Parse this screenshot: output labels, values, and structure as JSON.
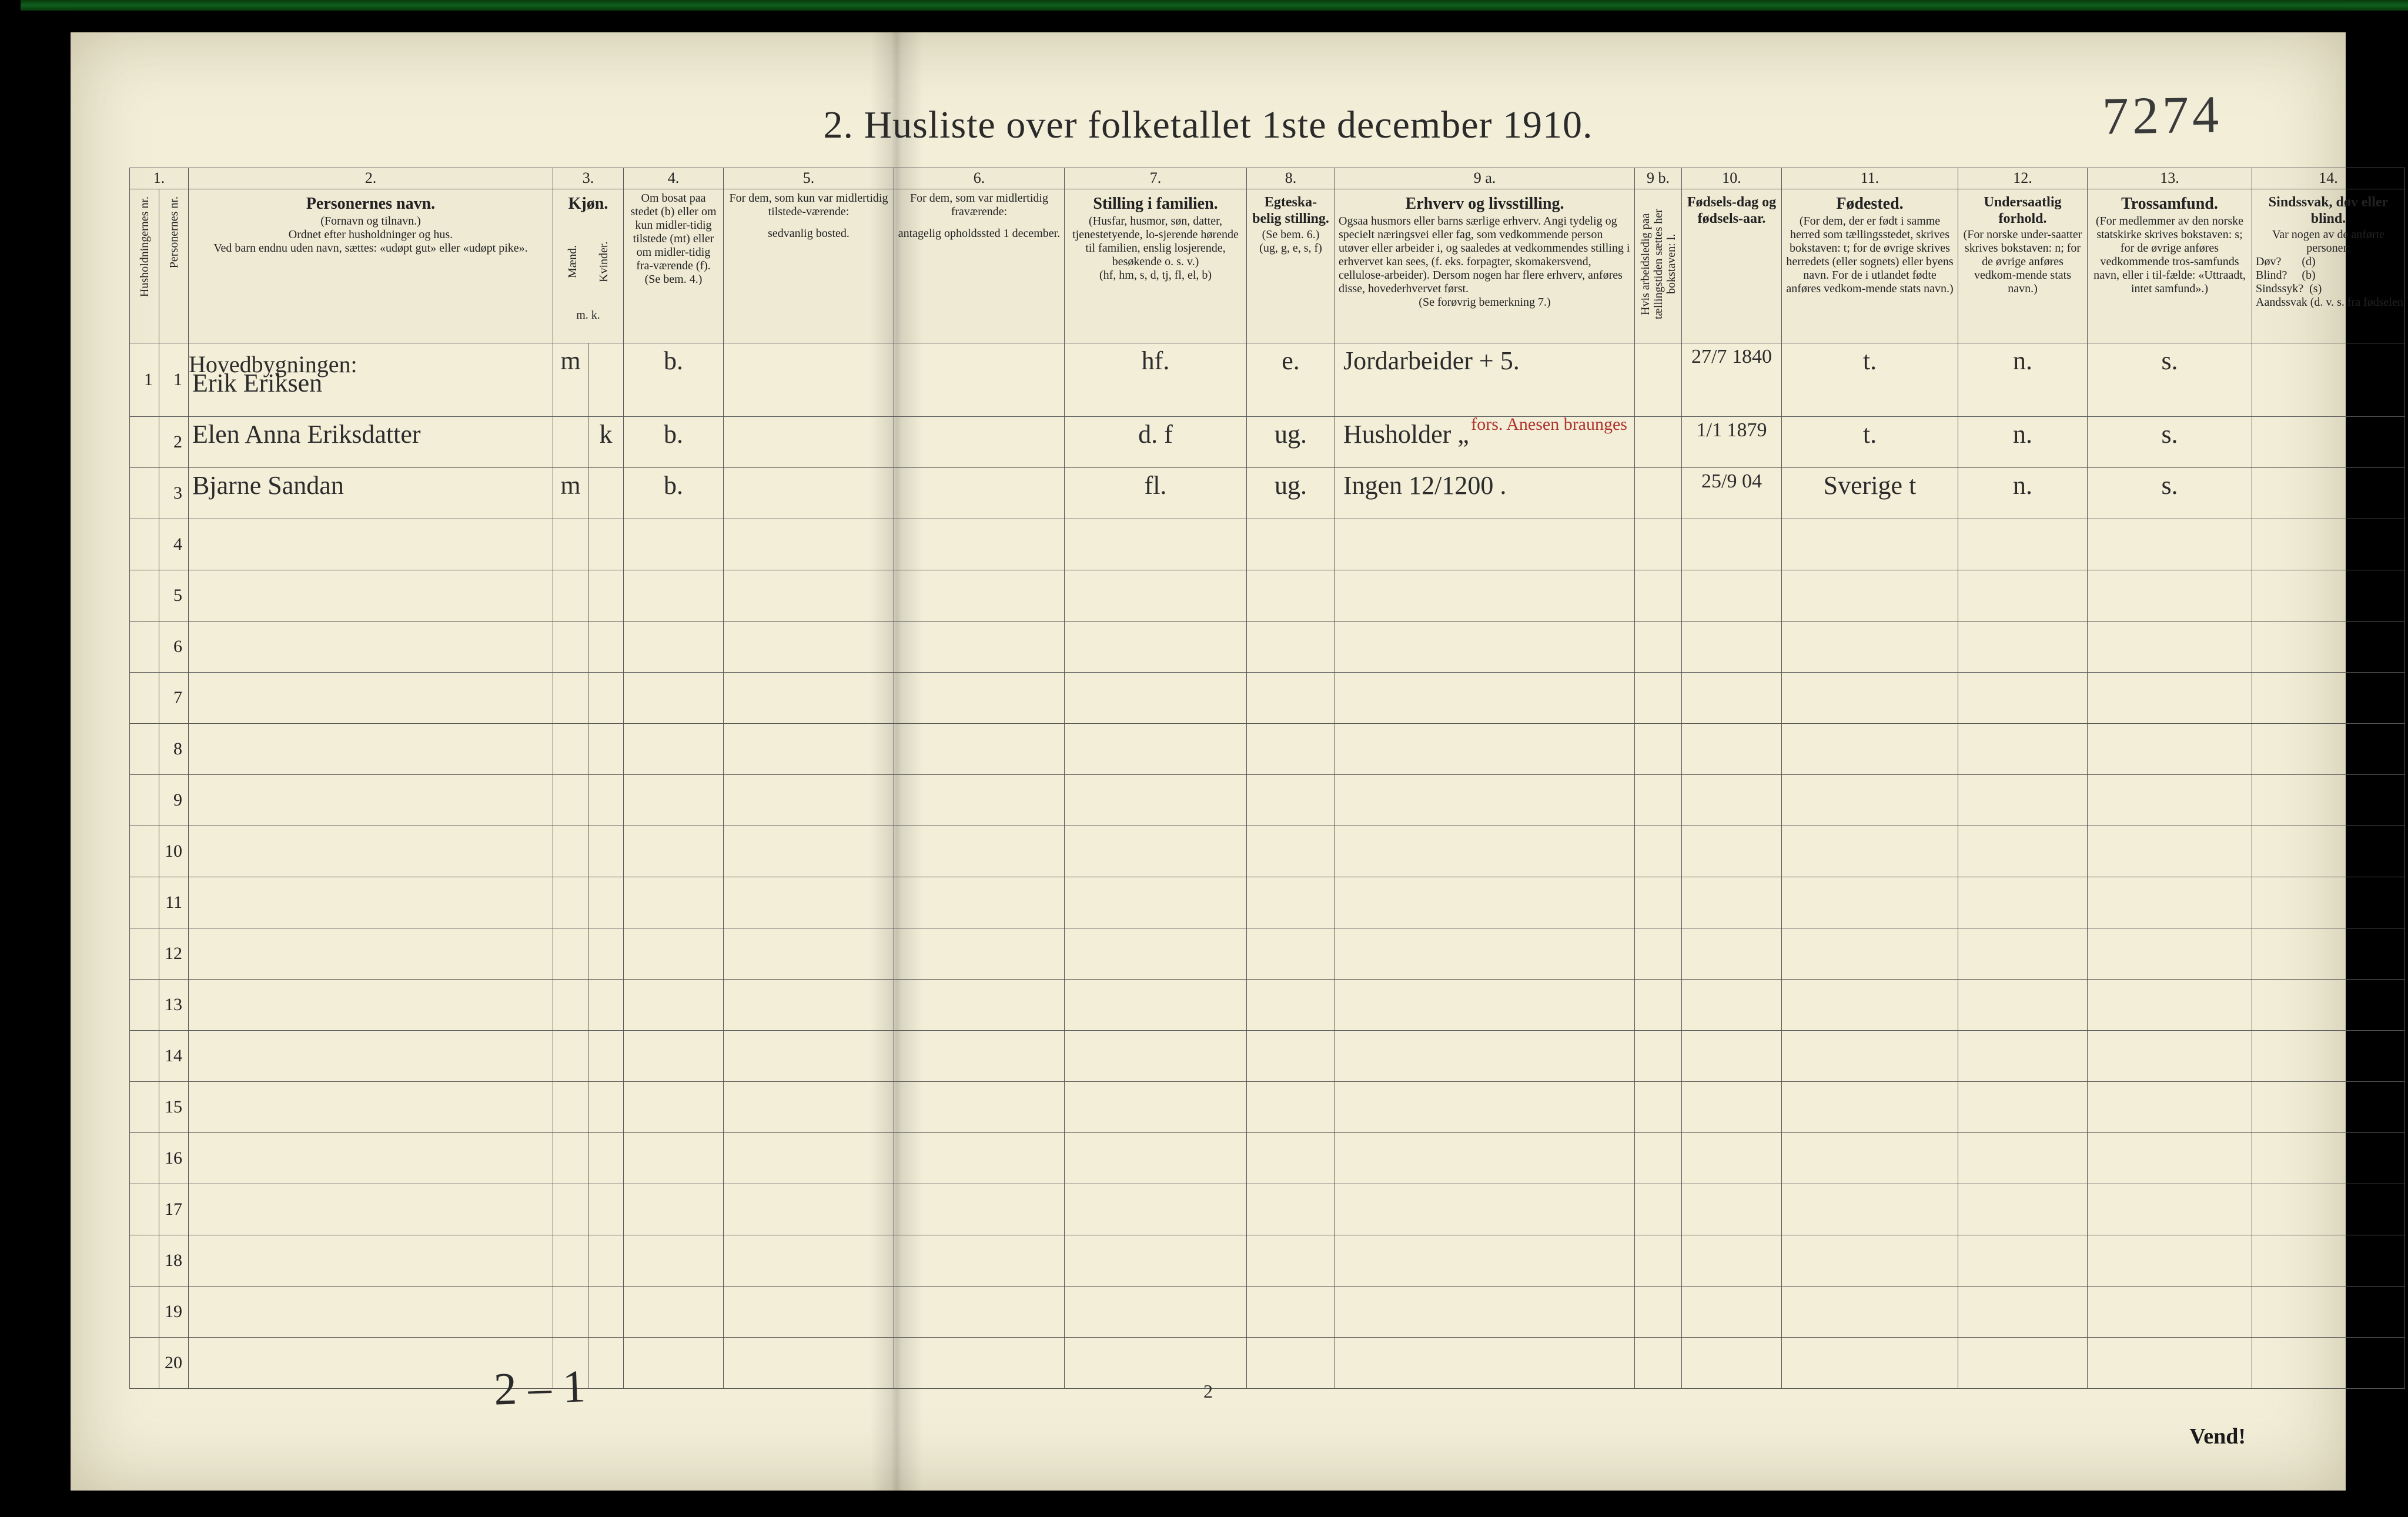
{
  "title": "2.  Husliste over folketallet 1ste december 1910.",
  "page_annotation": "7274",
  "bottom_annotation": "2 – 1",
  "page_number": "2",
  "vend": "Vend!",
  "col_numbers": [
    "1.",
    "",
    "2.",
    "3.",
    "",
    "4.",
    "5.",
    "6.",
    "7.",
    "8.",
    "9 a.",
    "9 b.",
    "10.",
    "11.",
    "12.",
    "13.",
    "14."
  ],
  "headers": {
    "c1a": "Husholdningernes nr.",
    "c1b": "Personernes nr.",
    "c2_title": "Personernes navn.",
    "c2_sub1": "(Fornavn og tilnavn.)",
    "c2_sub2": "Ordnet efter husholdninger og hus.",
    "c2_sub3": "Ved barn endnu uden navn, sættes: «udøpt gut» eller «udøpt pike».",
    "c3_title": "Kjøn.",
    "c3_m": "Mænd.",
    "c3_k": "Kvinder.",
    "c3_foot": "m.  k.",
    "c4_line1": "Om bosat paa stedet (b) eller om kun midler-tidig tilstede (mt) eller om midler-tidig fra-værende (f).",
    "c4_foot": "(Se bem. 4.)",
    "c5_line1": "For dem, som kun var midlertidig tilstede-værende:",
    "c5_line2": "sedvanlig bosted.",
    "c6_line1": "For dem, som var midlertidig fraværende:",
    "c6_line2": "antagelig opholdssted 1 december.",
    "c7_title": "Stilling i familien.",
    "c7_sub1": "(Husfar, husmor, søn, datter, tjenestetyende, lo-sjerende hørende til familien, enslig losjerende, besøkende o. s. v.)",
    "c7_sub2": "(hf, hm, s, d, tj, fl, el, b)",
    "c8_title": "Egteska-belig stilling.",
    "c8_sub1": "(Se bem. 6.)",
    "c8_sub2": "(ug, g, e, s, f)",
    "c9_title": "Erhverv og livsstilling.",
    "c9_sub1": "Ogsaa husmors eller barns særlige erhverv. Angi tydelig og specielt næringsvei eller fag, som vedkommende person utøver eller arbeider i, og saaledes at vedkommendes stilling i erhvervet kan sees, (f. eks. forpagter, skomakersvend, cellulose-arbeider). Dersom nogen har flere erhverv, anføres disse, hovederhvervet først.",
    "c9_sub2": "(Se forøvrig bemerkning 7.)",
    "c9b": "Hvis arbeidsledig paa tællingstiden sættes her bokstaven: l.",
    "c10_title": "Fødsels-dag og fødsels-aar.",
    "c11_title": "Fødested.",
    "c11_sub1": "(For dem, der er født i samme herred som tællingsstedet, skrives bokstaven: t; for de øvrige skrives herredets (eller sognets) eller byens navn. For de i utlandet fødte anføres vedkom-mende stats navn.)",
    "c12_title": "Undersaatlig forhold.",
    "c12_sub1": "(For norske under-saatter skrives bokstaven: n; for de øvrige anføres vedkom-mende stats navn.)",
    "c13_title": "Trossamfund.",
    "c13_sub1": "(For medlemmer av den norske statskirke skrives bokstaven: s; for de øvrige anføres vedkommende tros-samfunds navn, eller i til-fælde: «Uttraadt, intet samfund».)",
    "c14_title": "Sindssvak, døv eller blind.",
    "c14_sub1": "Var nogen av de anførte personer:",
    "c14_sub2": "Døv?       (d)\nBlind?     (b)\nSindssyk?  (s)\nAandssvak (d. v. s. fra fødselen eller den tid-ligste barndom)?  (a)"
  },
  "building_label": "Hovedbygningen:",
  "rows": [
    {
      "hh": "1",
      "pn": "1",
      "name": "Erik Eriksen",
      "sex_m": "m",
      "sex_k": "",
      "residence": "b.",
      "family": "hf.",
      "marital": "e.",
      "occupation": "Jordarbeider    + 5.",
      "occupation_red": "",
      "birth": "27/7 1840",
      "birthplace": "t.",
      "nationality": "n.",
      "faith": "s."
    },
    {
      "hh": "",
      "pn": "2",
      "name": "Elen Anna Eriksdatter",
      "sex_m": "",
      "sex_k": "k",
      "residence": "b.",
      "family": "d.   f",
      "marital": "ug.",
      "occupation": "Husholder         „",
      "occupation_red": "fors. Anesen braunges",
      "birth": "1/1 1879",
      "birthplace": "t.",
      "nationality": "n.",
      "faith": "s."
    },
    {
      "hh": "",
      "pn": "3",
      "name": "Bjarne Sandan",
      "sex_m": "m",
      "sex_k": "",
      "residence": "b.",
      "family": "fl.",
      "marital": "ug.",
      "occupation": "Ingen  12/1200 .",
      "occupation_red": "",
      "birth": "25/9 04",
      "birthplace": "Sverige t",
      "nationality": "n.",
      "faith": "s."
    }
  ],
  "empty_row_numbers": [
    "4",
    "5",
    "6",
    "7",
    "8",
    "9",
    "10",
    "11",
    "12",
    "13",
    "14",
    "15",
    "16",
    "17",
    "18",
    "19",
    "20"
  ]
}
